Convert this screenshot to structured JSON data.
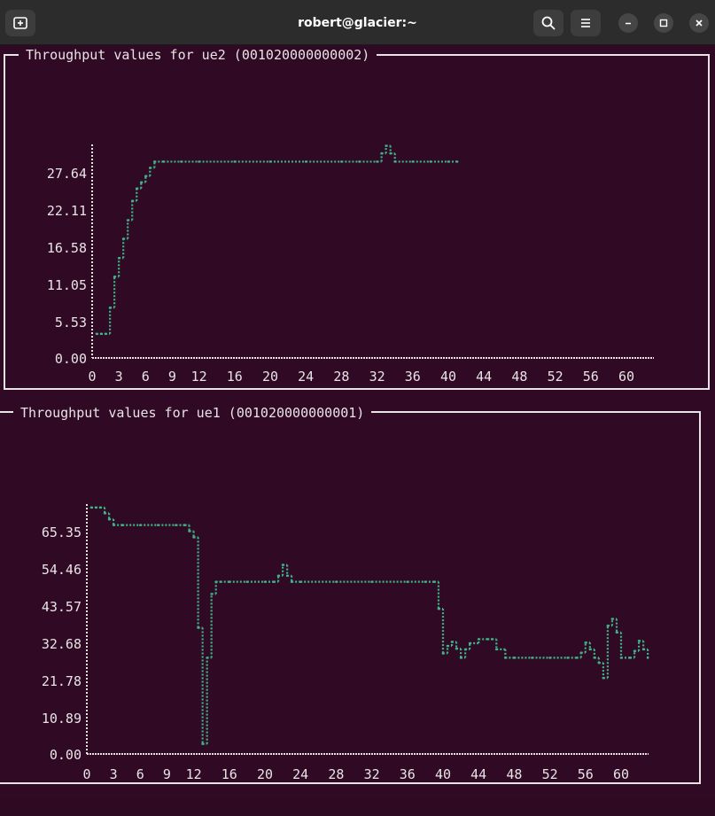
{
  "window": {
    "title": "robert@glacier:~",
    "buttons": {
      "new_tab": "new-tab-icon",
      "search": "search-icon",
      "menu": "hamburger-menu-icon",
      "minimize": "minimize-icon",
      "maximize": "maximize-icon",
      "close": "close-icon"
    }
  },
  "colors": {
    "terminal_bg": "#300a24",
    "titlebar_bg": "#2c2c2c",
    "series": "#3fb489",
    "axis": "#e8e4e6"
  },
  "panels": [
    {
      "title": "Throughput values for ue2 (001020000000002)"
    },
    {
      "title": "Throughput values for ue1 (001020000000001)"
    }
  ],
  "chart_data": [
    {
      "type": "line",
      "title": "Throughput values for ue2 (001020000000002)",
      "xlabel": "",
      "ylabel": "",
      "x_ticks": [
        "0",
        "3",
        "6",
        "9",
        "12",
        "16",
        "20",
        "24",
        "28",
        "32",
        "36",
        "40",
        "44",
        "48",
        "52",
        "56",
        "60"
      ],
      "y_ticks": [
        "27.64",
        "22.11",
        "16.58",
        "11.05",
        "5.53",
        "0.00"
      ],
      "xlim": [
        0,
        63.5
      ],
      "ylim": [
        0,
        31
      ],
      "grid": false,
      "series": [
        {
          "x": [
            0.5,
            1,
            1.5,
            2,
            2.5,
            3,
            3.5,
            4,
            4.5,
            5,
            5.5,
            6,
            6.5,
            7,
            8,
            10,
            12,
            16,
            20,
            24,
            28,
            30,
            32,
            32.5,
            33,
            33.5,
            34,
            36,
            38,
            40,
            41
          ],
          "y": [
            3.5,
            3.5,
            3.5,
            7.3,
            11.8,
            14.5,
            17.3,
            20,
            22.8,
            24.6,
            25.5,
            26.4,
            27.6,
            28.5,
            28.5,
            28.5,
            28.5,
            28.5,
            28.5,
            28.5,
            28.5,
            28.5,
            28.5,
            29.7,
            30.8,
            29.7,
            28.5,
            28.5,
            28.5,
            28.5,
            28.5
          ]
        }
      ]
    },
    {
      "type": "line",
      "title": "Throughput values for ue1 (001020000000001)",
      "xlabel": "",
      "ylabel": "",
      "x_ticks": [
        "0",
        "3",
        "6",
        "9",
        "12",
        "16",
        "20",
        "24",
        "28",
        "32",
        "36",
        "40",
        "44",
        "48",
        "52",
        "56",
        "60"
      ],
      "y_ticks": [
        "65.35",
        "54.46",
        "43.57",
        "32.68",
        "21.78",
        "10.89",
        "0.00"
      ],
      "xlim": [
        0,
        63.5
      ],
      "ylim": [
        0,
        74
      ],
      "grid": false,
      "series": [
        {
          "x": [
            0.5,
            1,
            1.5,
            2,
            2.5,
            3,
            4,
            6,
            8,
            10,
            11,
            11.5,
            12,
            12.5,
            13,
            13.5,
            14,
            14.5,
            15,
            16,
            18,
            20,
            21,
            21.5,
            22,
            22.5,
            23,
            24,
            28,
            32,
            36,
            38,
            39,
            39.5,
            40,
            40.5,
            41,
            41.5,
            42,
            42.5,
            43,
            44,
            45,
            45.5,
            46,
            47,
            48,
            50,
            52,
            54,
            55,
            55.5,
            56,
            56.5,
            57,
            57.5,
            58,
            58.5,
            59,
            59.5,
            60,
            61,
            61.5,
            62,
            62.5,
            63
          ],
          "y": [
            73,
            73,
            73,
            71.3,
            69.5,
            67.8,
            67.8,
            67.8,
            67.8,
            67.8,
            67.8,
            66,
            64.2,
            37.4,
            3,
            28.5,
            47.4,
            51,
            51,
            51,
            51,
            51,
            51,
            52.8,
            56,
            52.8,
            51,
            51,
            51,
            51,
            51,
            51,
            51,
            43,
            29.8,
            32,
            33.2,
            31.2,
            28.5,
            31,
            32.8,
            34,
            34,
            34,
            31,
            28.5,
            28.5,
            28.5,
            28.5,
            28.5,
            28.5,
            30,
            33,
            31,
            28.5,
            27,
            22.5,
            38,
            40,
            36,
            28.5,
            28.5,
            30.5,
            33.5,
            31,
            28.5
          ]
        }
      ]
    }
  ]
}
